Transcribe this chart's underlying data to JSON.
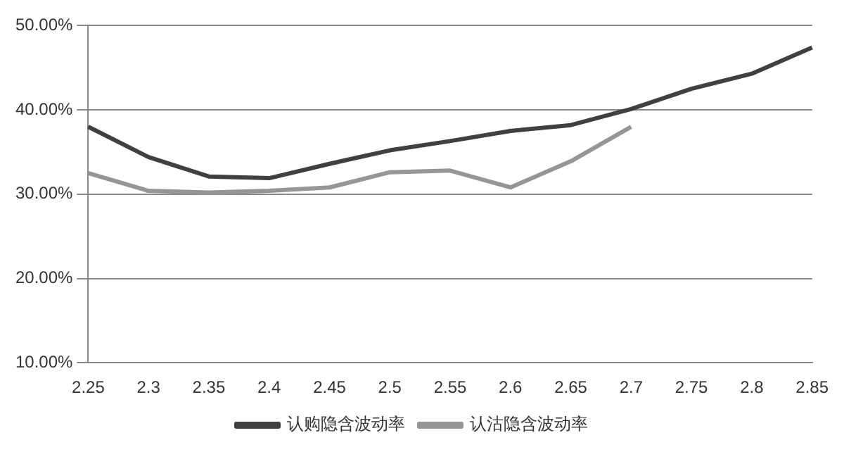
{
  "chart_data": {
    "type": "line",
    "categories": [
      "2.25",
      "2.3",
      "2.35",
      "2.4",
      "2.45",
      "2.5",
      "2.55",
      "2.6",
      "2.65",
      "2.7",
      "2.75",
      "2.8",
      "2.85"
    ],
    "series": [
      {
        "name": "认购隐含波动率",
        "color": "#404040",
        "values": [
          38.0,
          34.4,
          32.1,
          31.9,
          33.6,
          35.2,
          36.3,
          37.5,
          38.2,
          40.1,
          42.5,
          44.3,
          47.4
        ]
      },
      {
        "name": "认沽隐含波动率",
        "color": "#969696",
        "values": [
          32.5,
          30.4,
          30.2,
          30.4,
          30.8,
          32.6,
          32.8,
          30.8,
          33.9,
          38.0,
          null,
          null,
          null
        ]
      }
    ],
    "ylim": [
      10,
      50
    ],
    "yticks": [
      {
        "value": 10,
        "label": "10.00%"
      },
      {
        "value": 20,
        "label": "20.00%"
      },
      {
        "value": 30,
        "label": "30.00%"
      },
      {
        "value": 40,
        "label": "40.00%"
      },
      {
        "value": 50,
        "label": "50.00%"
      }
    ],
    "grid": "y",
    "legend": "bottom",
    "marker": "none",
    "line_style": "solid"
  }
}
